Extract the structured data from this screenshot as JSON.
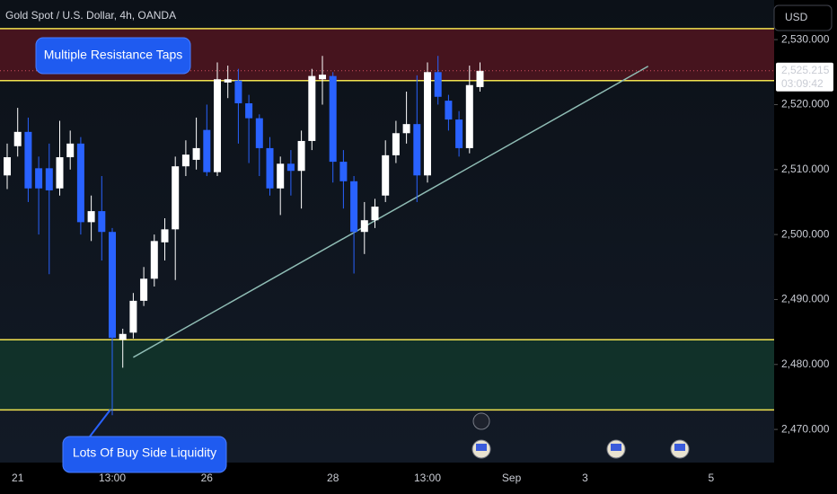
{
  "chart_data": {
    "type": "candlestick",
    "title": "Gold Spot / U.S. Dollar, 4h, OANDA",
    "currency": "USD",
    "categories": [
      null,
      "21",
      null,
      null,
      null,
      null,
      null,
      null,
      null,
      null,
      "13:00",
      null,
      null,
      null,
      null,
      null,
      null,
      null,
      null,
      "26",
      null,
      null,
      null,
      null,
      null,
      null,
      null,
      null,
      null,
      null,
      null,
      "28",
      null,
      null,
      null,
      null,
      null,
      null,
      null,
      null,
      "13:00",
      null,
      null,
      null,
      null,
      null,
      null,
      null,
      "Sep",
      null,
      null,
      null,
      null,
      null,
      null,
      "3",
      null,
      null,
      null,
      null,
      null,
      null,
      null,
      null,
      null,
      null,
      null,
      "5"
    ],
    "open": [
      2509.1,
      2513.6,
      2515.8,
      2510.2,
      2510.2,
      2507.1,
      2511.9,
      2514.0,
      2501.9,
      2503.6,
      2500.4,
      2483.8,
      2484.9,
      2489.8,
      2493.2,
      2498.8,
      2500.8,
      2510.5,
      2511.5,
      2516.1,
      2509.6,
      2523.4,
      2523.7,
      2520.2,
      2517.9,
      2513.3,
      2507.1,
      2510.9,
      2509.8,
      2514.4,
      2523.9,
      2524.4,
      2511.2,
      2508.2,
      2500.4,
      2502.2,
      2506.0,
      2512.2,
      2515.6,
      2517.0,
      2509.1,
      2525.0,
      2520.6,
      2517.7,
      2513.3,
      2522.7,
      null,
      null,
      null,
      null,
      null,
      null,
      null,
      null,
      null,
      null,
      null,
      null,
      null,
      null,
      null,
      null,
      null,
      null,
      null,
      null,
      null,
      null
    ],
    "high": [
      2514.0,
      2519.5,
      2518.0,
      2512.0,
      2514.0,
      2517.5,
      2516.0,
      2515.0,
      2506.0,
      2509.0,
      2501.0,
      2485.5,
      2491.0,
      2495.0,
      2500.0,
      2502.5,
      2512.0,
      2514.5,
      2518.0,
      2520.0,
      2526.5,
      2526.0,
      2525.5,
      2521.5,
      2518.5,
      2515.0,
      2512.0,
      2513.0,
      2516.0,
      2525.5,
      2527.5,
      2525.0,
      2513.0,
      2509.0,
      2505.0,
      2505.5,
      2514.5,
      2517.5,
      2522.0,
      2524.5,
      2526.5,
      2527.5,
      2521.5,
      2519.0,
      2526.0,
      2526.5,
      null,
      null,
      null,
      null,
      null,
      null,
      null,
      null,
      null,
      null,
      null,
      null,
      null,
      null,
      null,
      null,
      null,
      null,
      null,
      null,
      null,
      null
    ],
    "low": [
      2507.0,
      2512.0,
      2505.0,
      2500.0,
      2493.9,
      2506.0,
      2510.0,
      2500.0,
      2499.0,
      2496.0,
      2472.2,
      2479.5,
      2484.0,
      2489.0,
      2492.0,
      2496.0,
      2493.0,
      2509.0,
      2510.0,
      2509.0,
      2509.0,
      2521.0,
      2514.0,
      2511.0,
      2509.0,
      2506.0,
      2503.0,
      2506.0,
      2504.0,
      2513.0,
      2520.0,
      2508.0,
      2504.0,
      2494.0,
      2497.0,
      2501.0,
      2505.0,
      2511.0,
      2514.0,
      2505.0,
      2508.0,
      2520.0,
      2516.0,
      2512.0,
      2512.5,
      2522.0,
      null,
      null,
      null,
      null,
      null,
      null,
      null,
      null,
      null,
      null,
      null,
      null,
      null,
      null,
      null,
      null,
      null,
      null,
      null,
      null,
      null,
      null
    ],
    "close": [
      2511.9,
      2515.8,
      2507.1,
      2507.1,
      2506.8,
      2511.9,
      2514.0,
      2501.9,
      2503.6,
      2500.4,
      2484.1,
      2484.7,
      2489.8,
      2493.2,
      2499.0,
      2500.8,
      2510.5,
      2512.3,
      2513.3,
      2509.6,
      2523.9,
      2523.9,
      2520.2,
      2517.9,
      2513.3,
      2507.1,
      2510.9,
      2509.8,
      2514.4,
      2524.4,
      2524.6,
      2511.2,
      2508.2,
      2500.4,
      2502.2,
      2504.3,
      2512.2,
      2515.6,
      2517.0,
      2509.1,
      2525.0,
      2521.2,
      2517.7,
      2513.3,
      2523.0,
      2525.2,
      null,
      null,
      null,
      null,
      null,
      null,
      null,
      null,
      null,
      null,
      null,
      null,
      null,
      null,
      null,
      null,
      null,
      null,
      null,
      null,
      null,
      null
    ],
    "up_color": "#ffffff",
    "down_color": "#2962ff",
    "ylim": [
      2464.9,
      2536.1
    ],
    "yticks": [
      {
        "value": 2470,
        "label": "2,470.000"
      },
      {
        "value": 2480,
        "label": "2,480.000"
      },
      {
        "value": 2490,
        "label": "2,490.000"
      },
      {
        "value": 2500,
        "label": "2,500.000"
      },
      {
        "value": 2510,
        "label": "2,510.000"
      },
      {
        "value": 2520,
        "label": "2,520.000"
      },
      {
        "value": 2530,
        "label": "2,530.000"
      }
    ],
    "last_price": {
      "value": 2525.215,
      "label": "2,525.215"
    },
    "countdown": "03:09:42",
    "zones": [
      {
        "range": [
          2523.7,
          2531.7
        ],
        "color": "#5a1620",
        "line_color": "#f2e34f"
      },
      {
        "range": [
          2473.0,
          2483.8
        ],
        "color": "#123a2c",
        "line_color": "#f2e34f"
      }
    ],
    "trendline": {
      "x": [
        12,
        61
      ],
      "y": [
        2481.1,
        2525.9
      ],
      "color": "#8fbcb4"
    },
    "annotations": [
      "Multiple Resistance Taps",
      "Lots Of Buy Side Liquidity"
    ]
  }
}
